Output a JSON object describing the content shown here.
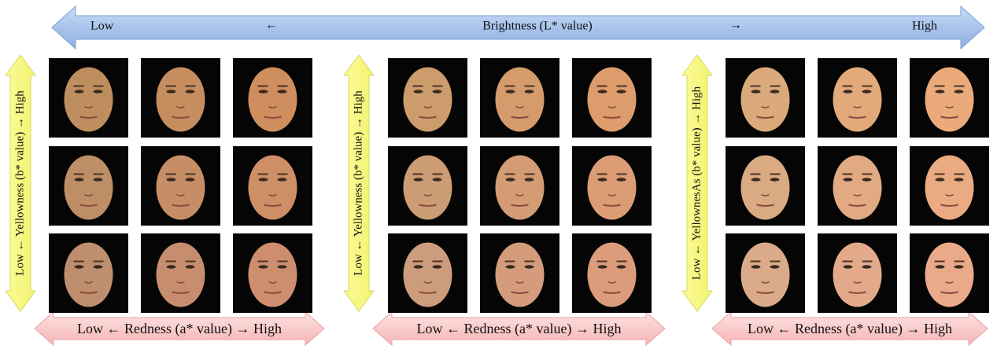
{
  "top_arrow": {
    "left": "Low",
    "left_arrow": "←",
    "label": "Brightness (L* value)",
    "right_arrow": "→",
    "right": "High"
  },
  "panels": [
    {
      "yellowness_label": "Low ← Yellowness (b* value) → High",
      "redness_label": "Low ← Redness (a* value) → High"
    },
    {
      "yellowness_label": "Low ← Yellowness (b* value) → High",
      "redness_label": "Low ← Redness (a* value) → High"
    },
    {
      "yellowness_label": "Low ← YellownesAs (b* value) → High",
      "redness_label": "Low ← Redness (a* value) → High"
    }
  ]
}
